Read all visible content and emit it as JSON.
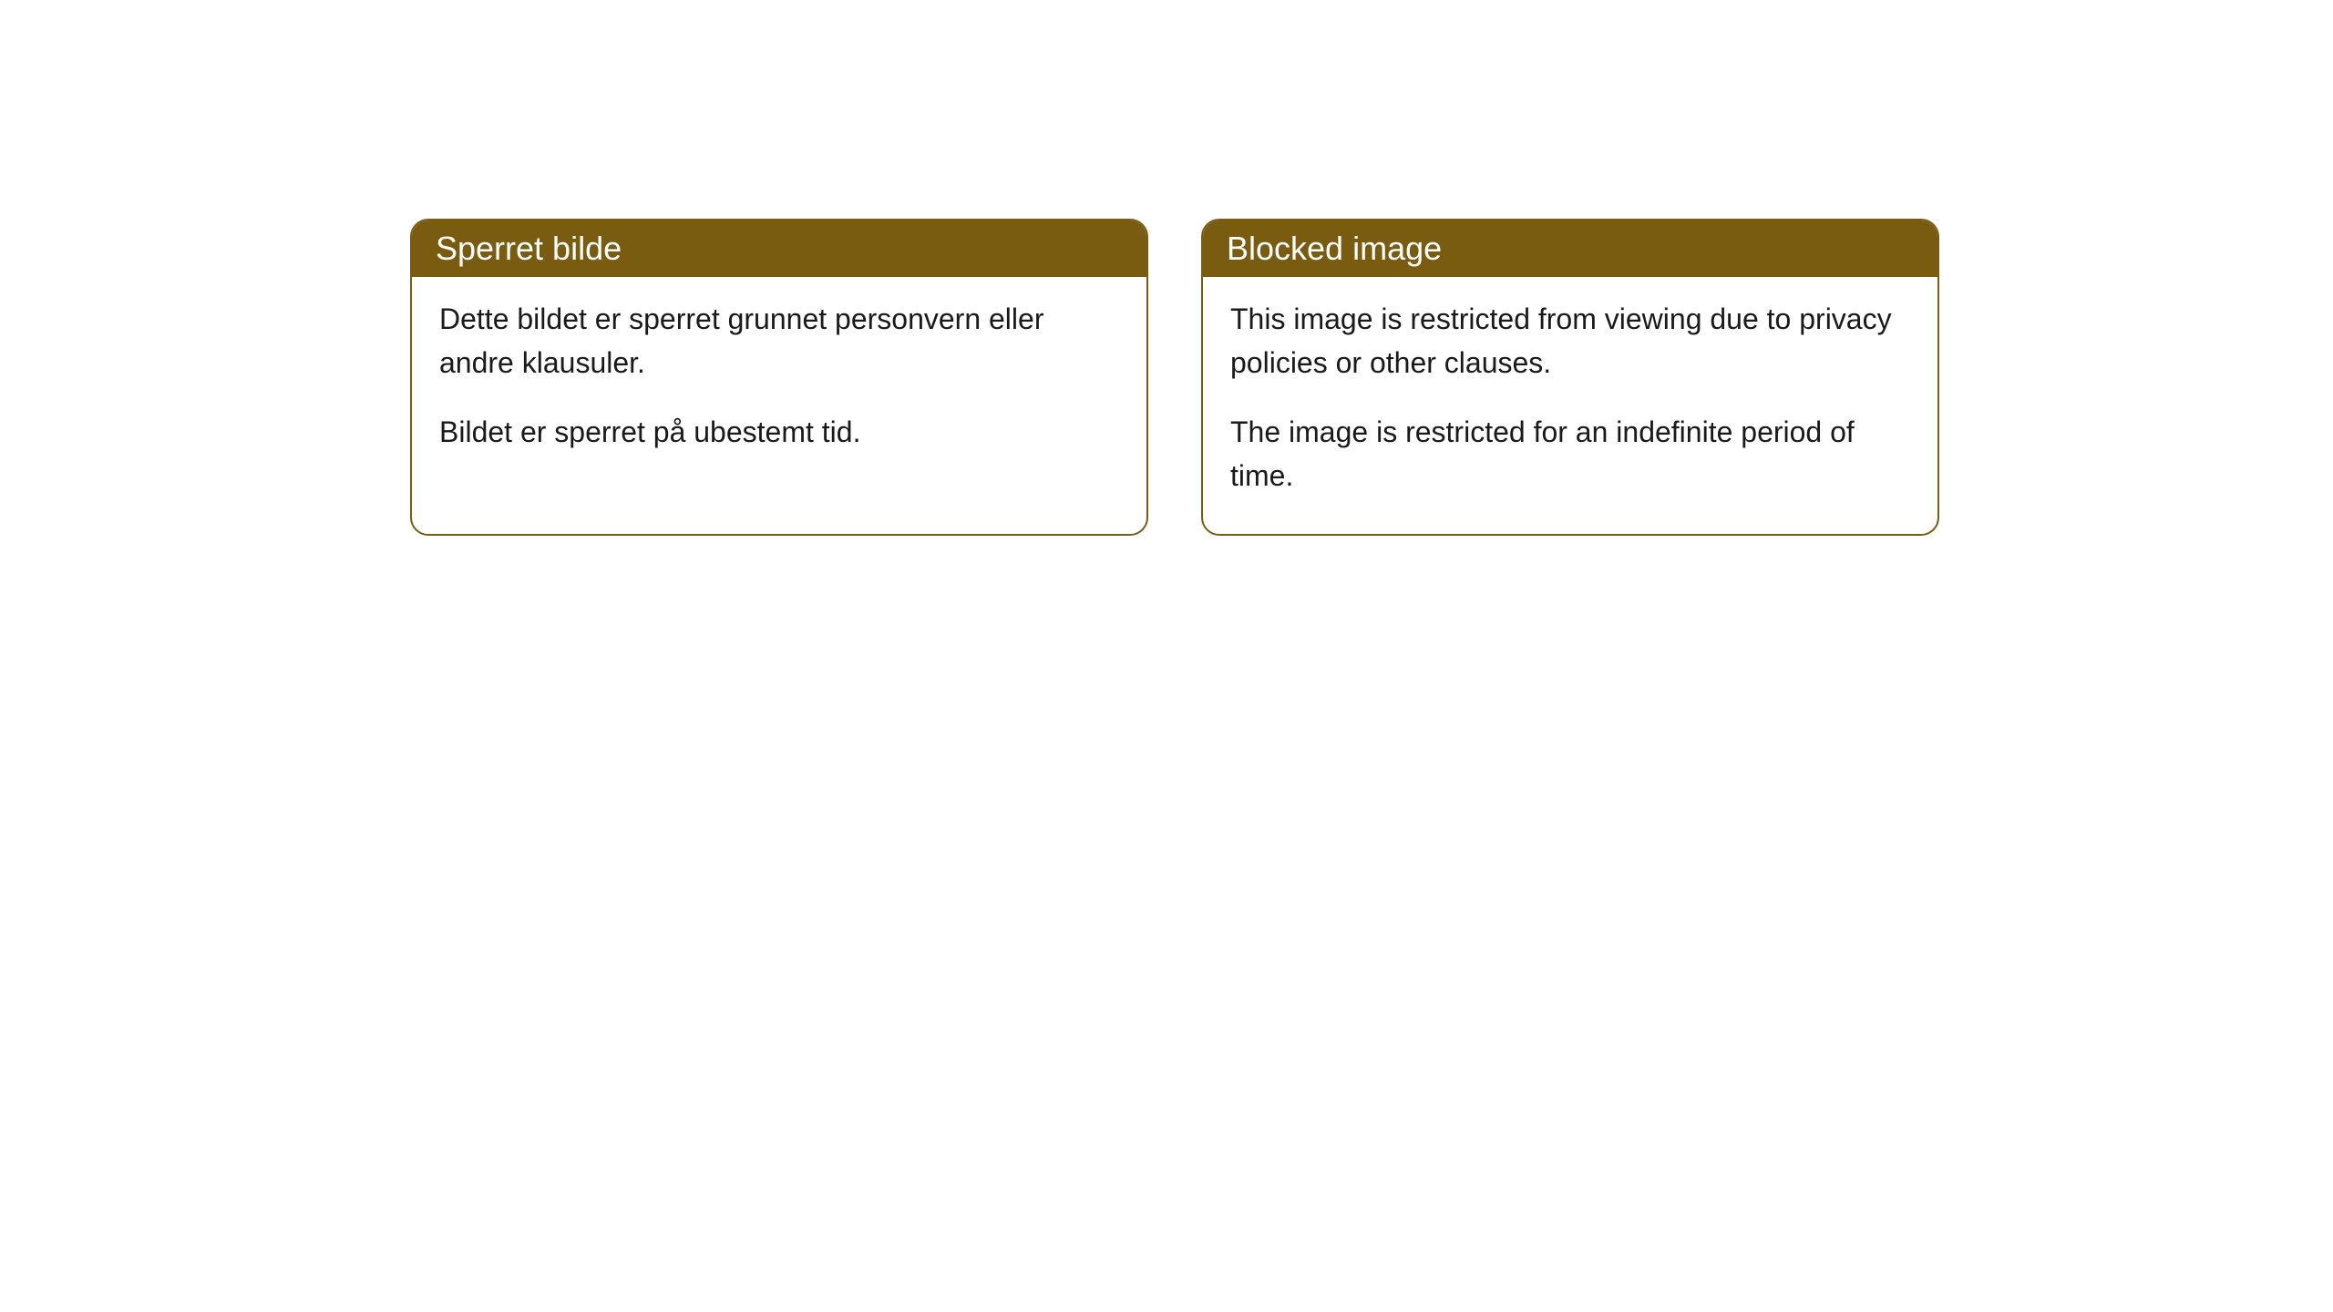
{
  "cards": [
    {
      "title": "Sperret bilde",
      "paragraph1": "Dette bildet er sperret grunnet personvern eller andre klausuler.",
      "paragraph2": "Bildet er sperret på ubestemt tid."
    },
    {
      "title": "Blocked image",
      "paragraph1": "This image is restricted from viewing due to privacy policies or other clauses.",
      "paragraph2": "The image is restricted for an indefinite period of time."
    }
  ],
  "styling": {
    "header_background": "#7a5c10",
    "header_text_color": "#ffffff",
    "border_color": "#7a5c10",
    "body_background": "#ffffff",
    "body_text_color": "#1a1a1a",
    "border_radius": 20,
    "header_fontsize": 36,
    "body_fontsize": 32
  }
}
